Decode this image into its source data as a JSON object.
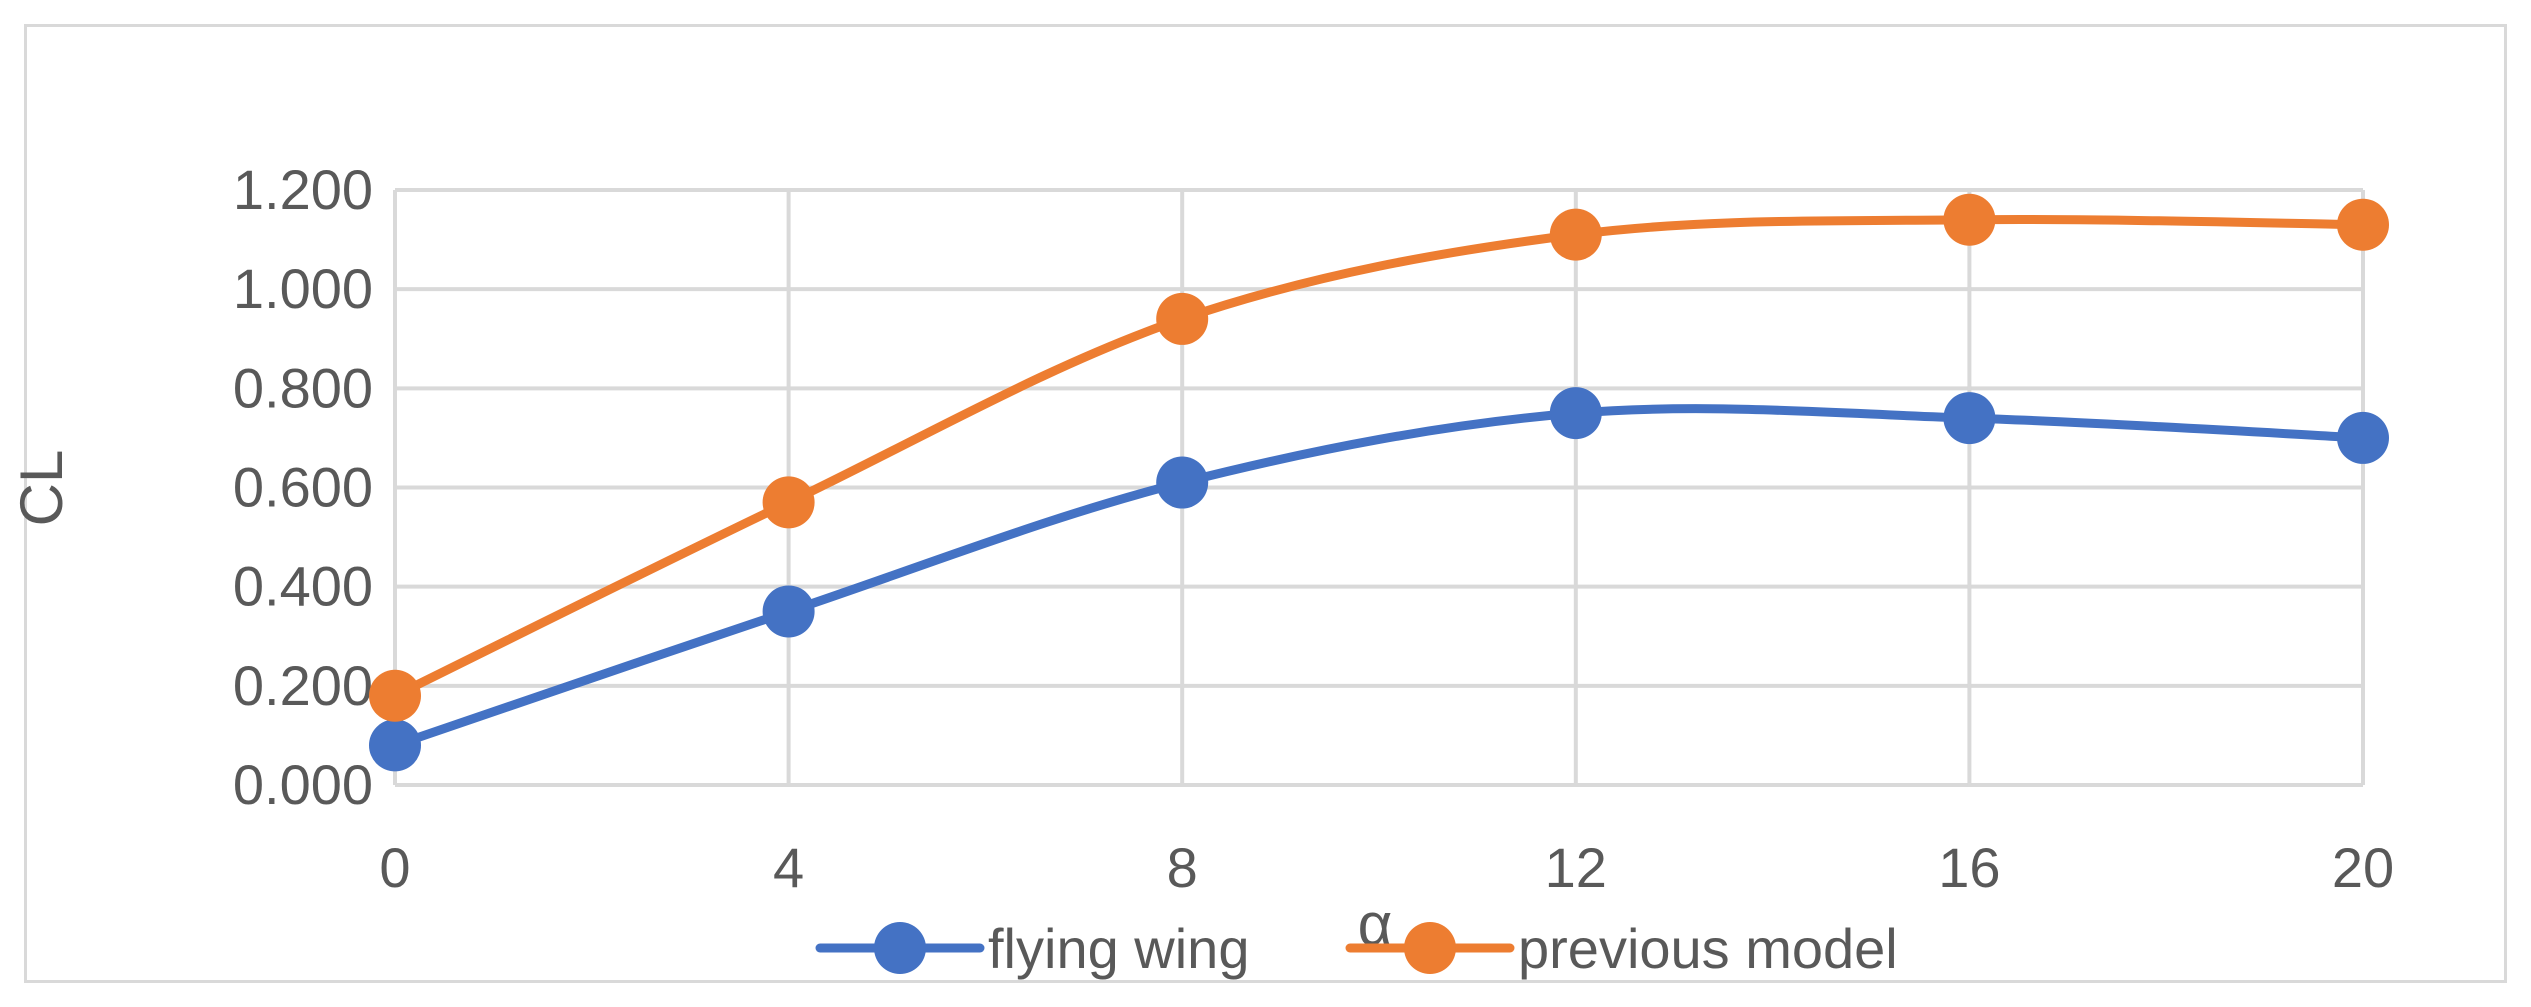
{
  "chart_data": {
    "type": "line",
    "title": "",
    "xlabel": "α",
    "ylabel": "CL",
    "x": [
      0,
      4,
      8,
      12,
      16,
      20
    ],
    "x_tick_labels": [
      "0",
      "4",
      "8",
      "12",
      "16",
      "20"
    ],
    "y_tick_labels": [
      "0.000",
      "0.200",
      "0.400",
      "0.600",
      "0.800",
      "1.000",
      "1.200"
    ],
    "y_ticks": [
      0,
      0.2,
      0.4,
      0.6,
      0.8,
      1.0,
      1.2
    ],
    "xlim": [
      0,
      20
    ],
    "ylim": [
      0,
      1.2
    ],
    "grid": true,
    "smooth": true,
    "legend": "bottom",
    "series": [
      {
        "name": "flying wing",
        "color": "#4472c4",
        "values": [
          0.08,
          0.35,
          0.61,
          0.75,
          0.74,
          0.7
        ]
      },
      {
        "name": "previous model",
        "color": "#ed7d31",
        "values": [
          0.18,
          0.57,
          0.94,
          1.11,
          1.14,
          1.13
        ]
      }
    ],
    "colors": {
      "grid": "#d9d9d9",
      "text": "#595959",
      "frame": "#d9d9d9"
    }
  }
}
